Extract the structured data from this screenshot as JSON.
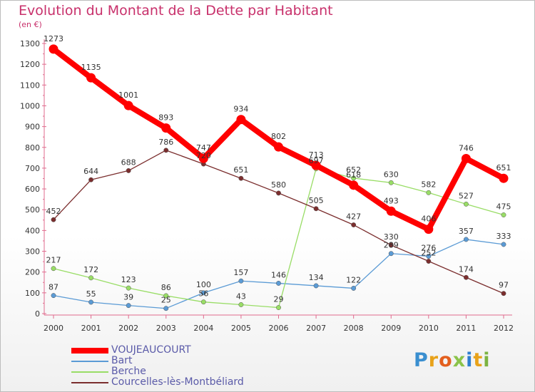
{
  "header": {
    "title": "Evolution du Montant de la Dette par Habitant",
    "unit": "(en €)"
  },
  "logo": {
    "text": "Proxiti"
  },
  "chart_data": {
    "type": "line",
    "x": [
      2000,
      2001,
      2002,
      2003,
      2004,
      2005,
      2006,
      2007,
      2008,
      2009,
      2010,
      2011,
      2012
    ],
    "ylim": [
      0,
      1300
    ],
    "yticks": [
      0,
      100,
      200,
      300,
      400,
      500,
      600,
      700,
      800,
      900,
      1000,
      1100,
      1200,
      1300
    ],
    "grid": false,
    "legend_position": "bottom",
    "series": [
      {
        "name": "VOUJEAUCOURT",
        "color": "#ff0000",
        "values": [
          1273,
          1135,
          1001,
          893,
          747,
          934,
          802,
          713,
          618,
          493,
          406,
          746,
          651
        ]
      },
      {
        "name": "Bart",
        "color": "#5b9bd5",
        "values": [
          87,
          55,
          39,
          25,
          100,
          157,
          146,
          134,
          122,
          289,
          276,
          357,
          333
        ]
      },
      {
        "name": "Berche",
        "color": "#99dd66",
        "values": [
          217,
          172,
          123,
          86,
          56,
          43,
          29,
          697,
          652,
          630,
          582,
          527,
          475
        ]
      },
      {
        "name": "Courcelles-lès-Montbéliard",
        "color": "#7b2e2e",
        "values": [
          452,
          644,
          688,
          786,
          720,
          651,
          580,
          505,
          427,
          330,
          252,
          174,
          97
        ]
      }
    ]
  }
}
